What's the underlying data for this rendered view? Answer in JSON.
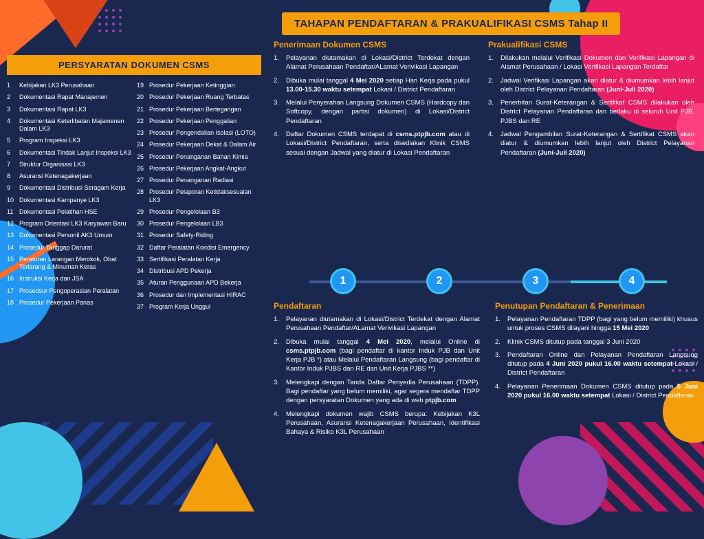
{
  "mainTitle": "TAHAPAN PENDAFTARAN & PRAKUALIFIKASI CSMS Tahap II",
  "leftHeading": "PERSYARATAN DOKUMEN CSMS",
  "leftCol1": [
    "Kebijakan LK3 Perusahaan",
    "Dokumentasi Rapat Manajemen",
    "Dokumentasi Rapat LK3",
    "Dokumentasi Keterlibatan Majamenen Dalam LK3",
    "Program Inspeksi LK3",
    "Dokumentasi Tindak Lanjut Inspeksi LK3",
    "Struktur Organisasi LK3",
    "Asuransi Ketenagakerjaan",
    "Dokumentasi Distribusi Seragam Kerja",
    "Dokumentasi Kampanye LK3",
    "Dokumentasi Pelatihan HSE",
    "Program Orientasi LK3 Karyawan Baru",
    "Dokumentasi Personil AK3 Umum",
    "Prosedur Tanggap Darurat",
    "Peraturan Larangan Merokok, Obat Terlarang & Minuman Keras",
    "Instruksi Kerja dan JSA",
    "Prosedsur Pengoperasian Peralatan",
    "Prosedur Pekerjaan Panas"
  ],
  "leftCol2": [
    "Prosedur Pekerjaan Ketinggian",
    "Prosedur Pekerjaan Ruang Terbatas",
    "Prosedur Pekerjaan Bertegangan",
    "Prosedur Pekerjaan Penggalian",
    "Prosedur Pengendalian Isolasi (LOTO)",
    "Prosedur Pekerjaan Dekat & Dalam Air",
    "Prosedur Penanganan Bahan Kimia",
    "Prosedur Pekerjaan Angkat-Angkut",
    "Prosedur Penanganan Radiasi",
    "Prosedur Pelaporan Ketidaksesuaian LK3",
    "Prosedur Pengelolaan B3",
    "Prosedur Pengelolaan LB3",
    "Prosedur Safety-Riding",
    "Daftar Peralatan Kondisi Emergency",
    "Sertifikasi Peralatan Kerja",
    "Distribusi APD Pekerja",
    "Aturan Penggunaan APD Bekerja",
    "Prosedur dan Implementasi HIRAC",
    "Program Kerja Unggul"
  ],
  "blocks": {
    "b1": {
      "title": "Penerimaan Dokumen CSMS",
      "items": [
        "Pelayanan diutamakan di Lokasi/District Terdekat dengan Alamat Perusahaan Pendaftar/ALamat Verivikasi Lapangan",
        "Dibuka mulai tanggal <b>4 Mei 2020</b> setiap Hari Kerja pada pukul <b>13.00-15.30 waktu setempat</b> Lokasi / District Pendaftaran",
        "Melalui Penyerahan Langsung Dokumen CSMS (Hardcopy dan Softcopy, dengan partisi dokumen) di Lokasi/District Pendaftaran",
        "Daftar Dokumen CSMS terdapat di <b>csms.ptpjb.com</b> atau di Lokasi/District Pendaftaran, serta disediakan Klinik CSMS sesuai dengan Jadwal yang diatur di Lokasi Pendaftaran"
      ]
    },
    "b2": {
      "title": "Prakualifikasi CSMS",
      "items": [
        "Dilakukan melalui Verifikasi Dokumen dan Verifikasi Lapangan di Alamat Perusahaan / Lokasi Verifikasi Lapangan Terdaftar",
        "Jadwal Verifikasi Lapangan akan diatur & diumumkan lebih lanjut oleh District Pelayanan Pendaftaran <b>(Juni-Juli 2020)</b>",
        "Penerbitan Surat-Keterangan & Sertifikat CSMS dilakukan oleh District Pelayanan Pendaftaran dan berlaku di seluruh Unit PJB, PJBS dan RE",
        "Jadwal Pengambilan Surat-Keterangan & Sertifikat CSMS akan diatur & diumumkan lebih lanjut oleh District Pelayanan Pendaftaran <b>(Juni-Juli 2020)</b>"
      ]
    },
    "b3": {
      "title": "Pendaftaran",
      "items": [
        "Pelayanan diutamakan di Lokasi/District Terdekat dengan Alamat Perusahaan Pendaftar/ALamat Verivikasi Lapangan",
        "Dibuka mulai tanggal <b>4 Mei 2020</b>, melalui Online di <b>csms.ptpjb.com</b> (bagi pendaftar di kantor Induk PJB dan Unit Kerja PJB *) atau Melalui Pendaftaran Langsung (bagi pendaftar di Kantor Induk PJBS dan RE dan Unit Kerja PJBS **)",
        "Melengkapi dengan Tanda Daftar Penyedia Perusahaan (TDPP). Bagi pendaftar yang belum memiliki, agar segera mendaftar TDPP dengan persyaratan Dokumen yang ada di web <b>ptpjb.com</b>",
        "Melengkapi dokumen wajib CSMS berupa: Kebijakan K3L Perusahaan, Asuransi Ketenagakerjaan Perusahaan, Identifikasi Bahaya & Risiko K3L Perusahaan"
      ]
    },
    "b4": {
      "title": "Penutupan Pendaftaran & Penerimaan",
      "items": [
        "Pelayanan Pendaftaran TDPP (bagi yang belum memiliki) khusus untuk proses CSMS dilayani hingga <b>15 Mei 2020</b>",
        "Klinik CSMS ditutup pada tanggal 3 Juni 2020",
        "Pendaftaran Online dan Pelayanan Pendaftaran Langsung ditutup pada <b>4 Juni 2020 pukul 16.00 waktu setempat</b> Lokasi / District Pendaftaran",
        "Pelayanan Penerimaan Dokumen CSMS ditutup pada <b>5 Juni 2020 pukul 16.00 waktu setempat</b> Lokasi / District Pendaftaran"
      ]
    }
  },
  "timeline": [
    "1",
    "2",
    "3",
    "4"
  ]
}
